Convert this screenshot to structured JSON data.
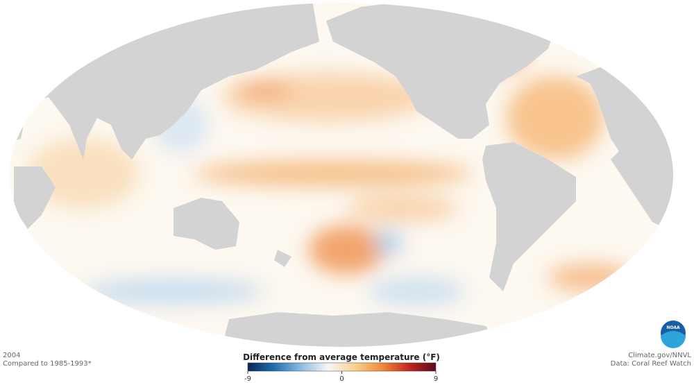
{
  "title": "2004",
  "subtitle": "Compared to 1985-1993*",
  "legend": {
    "title": "Difference from average temperature (°F)",
    "range": [
      -9,
      9
    ],
    "ticks": [
      -9,
      0,
      9
    ],
    "colors": [
      "#08264f",
      "#1f6fb4",
      "#8fbde0",
      "#f7f7f7",
      "#fbd08d",
      "#ef8a3a",
      "#c2271e",
      "#5a0a1c"
    ]
  },
  "credits": [
    "Climate.gov/NNVL",
    "Data: Coral Reef Watch"
  ],
  "logo": "NOAA"
}
